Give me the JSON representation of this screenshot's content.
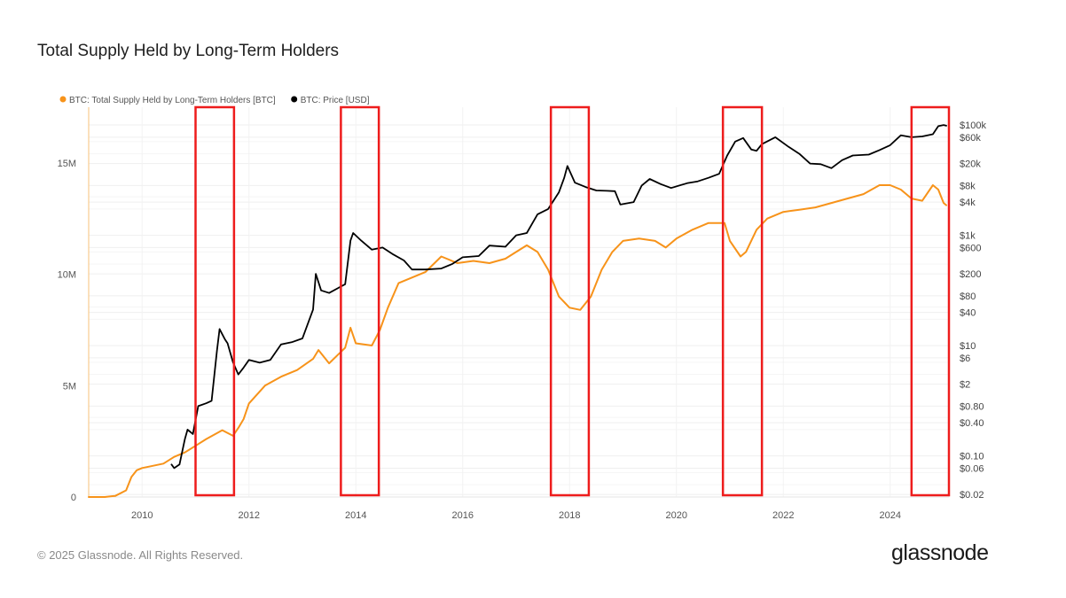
{
  "title": "Total Supply Held by Long-Term Holders",
  "footer": "© 2025 Glassnode. All Rights Reserved.",
  "brand": "glassnode",
  "chart_data": {
    "type": "line",
    "title": "Total Supply Held by Long-Term Holders",
    "legend_position": "top-left",
    "grid": true,
    "x_ticks": [
      "2010",
      "2012",
      "2014",
      "2016",
      "2018",
      "2020",
      "2022",
      "2024"
    ],
    "xlim": [
      2009.0,
      2025.1
    ],
    "y_left": {
      "ticks": [
        {
          "v": 0,
          "label": "0"
        },
        {
          "v": 5,
          "label": "5M"
        },
        {
          "v": 10,
          "label": "10M"
        },
        {
          "v": 15,
          "label": "15M"
        }
      ],
      "ylim": [
        0,
        17.5
      ],
      "unit": "M BTC"
    },
    "y_right": {
      "scale": "log",
      "ticks": [
        {
          "v": 100000,
          "label": "$100k"
        },
        {
          "v": 60000,
          "label": "$60k"
        },
        {
          "v": 20000,
          "label": "$20k"
        },
        {
          "v": 8000,
          "label": "$8k"
        },
        {
          "v": 4000,
          "label": "$4k"
        },
        {
          "v": 1000,
          "label": "$1k"
        },
        {
          "v": 600,
          "label": "$600"
        },
        {
          "v": 200,
          "label": "$200"
        },
        {
          "v": 80,
          "label": "$80"
        },
        {
          "v": 40,
          "label": "$40"
        },
        {
          "v": 10,
          "label": "$10"
        },
        {
          "v": 6,
          "label": "$6"
        },
        {
          "v": 2,
          "label": "$2"
        },
        {
          "v": 0.8,
          "label": "$0.80"
        },
        {
          "v": 0.4,
          "label": "$0.40"
        },
        {
          "v": 0.1,
          "label": "$0.10"
        },
        {
          "v": 0.06,
          "label": "$0.06"
        },
        {
          "v": 0.02,
          "label": "$0.02"
        }
      ],
      "ylim": [
        0.018,
        210000
      ]
    },
    "series": [
      {
        "name": "BTC: Total Supply Held by Long-Term Holders [BTC]",
        "color": "#f7931a",
        "axis": "left",
        "x": [
          2009.0,
          2009.3,
          2009.5,
          2009.7,
          2009.8,
          2009.9,
          2010.0,
          2010.2,
          2010.4,
          2010.6,
          2010.8,
          2011.0,
          2011.2,
          2011.5,
          2011.7,
          2011.8,
          2011.9,
          2012.0,
          2012.3,
          2012.6,
          2012.9,
          2013.2,
          2013.3,
          2013.5,
          2013.8,
          2013.9,
          2014.0,
          2014.3,
          2014.45,
          2014.6,
          2014.8,
          2015.0,
          2015.3,
          2015.6,
          2015.9,
          2016.2,
          2016.5,
          2016.8,
          2017.0,
          2017.2,
          2017.4,
          2017.6,
          2017.8,
          2018.0,
          2018.2,
          2018.4,
          2018.6,
          2018.8,
          2019.0,
          2019.3,
          2019.6,
          2019.8,
          2020.0,
          2020.3,
          2020.6,
          2020.9,
          2021.0,
          2021.2,
          2021.3,
          2021.5,
          2021.7,
          2022.0,
          2022.3,
          2022.6,
          2022.9,
          2023.2,
          2023.5,
          2023.8,
          2024.0,
          2024.2,
          2024.4,
          2024.6,
          2024.8,
          2024.9,
          2025.0,
          2025.05
        ],
        "values": [
          0,
          0,
          0.05,
          0.3,
          0.9,
          1.2,
          1.3,
          1.4,
          1.5,
          1.8,
          2.0,
          2.3,
          2.6,
          3.0,
          2.75,
          3.1,
          3.5,
          4.2,
          5.0,
          5.4,
          5.7,
          6.2,
          6.6,
          6.0,
          6.7,
          7.6,
          6.9,
          6.8,
          7.5,
          8.5,
          9.6,
          9.8,
          10.1,
          10.8,
          10.5,
          10.6,
          10.5,
          10.7,
          11.0,
          11.3,
          11.0,
          10.2,
          9.0,
          8.5,
          8.4,
          9.0,
          10.2,
          11.0,
          11.5,
          11.6,
          11.5,
          11.2,
          11.6,
          12.0,
          12.3,
          12.3,
          11.5,
          10.8,
          11.0,
          12.0,
          12.5,
          12.8,
          12.9,
          13.0,
          13.2,
          13.4,
          13.6,
          14.0,
          14.0,
          13.8,
          13.4,
          13.3,
          14.0,
          13.8,
          13.2,
          13.1
        ]
      },
      {
        "name": "BTC: Price [USD]",
        "color": "#000000",
        "axis": "right",
        "x": [
          2010.55,
          2010.6,
          2010.7,
          2010.8,
          2010.85,
          2010.95,
          2011.05,
          2011.2,
          2011.3,
          2011.4,
          2011.45,
          2011.55,
          2011.6,
          2011.7,
          2011.8,
          2011.9,
          2012.0,
          2012.2,
          2012.4,
          2012.6,
          2012.8,
          2013.0,
          2013.2,
          2013.25,
          2013.35,
          2013.5,
          2013.8,
          2013.9,
          2013.95,
          2014.1,
          2014.3,
          2014.5,
          2014.7,
          2014.9,
          2015.05,
          2015.3,
          2015.6,
          2015.8,
          2016.0,
          2016.3,
          2016.5,
          2016.8,
          2017.0,
          2017.2,
          2017.4,
          2017.6,
          2017.8,
          2017.9,
          2017.96,
          2018.1,
          2018.3,
          2018.5,
          2018.7,
          2018.85,
          2018.95,
          2019.2,
          2019.35,
          2019.5,
          2019.7,
          2019.9,
          2020.2,
          2020.4,
          2020.6,
          2020.8,
          2020.95,
          2021.1,
          2021.25,
          2021.4,
          2021.5,
          2021.6,
          2021.85,
          2022.1,
          2022.3,
          2022.5,
          2022.7,
          2022.9,
          2023.1,
          2023.3,
          2023.6,
          2023.8,
          2024.0,
          2024.2,
          2024.4,
          2024.6,
          2024.8,
          2024.9,
          2025.0,
          2025.05
        ],
        "values": [
          0.07,
          0.06,
          0.07,
          0.2,
          0.3,
          0.25,
          0.8,
          0.9,
          1.0,
          8.0,
          20.0,
          13.0,
          11.0,
          5.0,
          3.0,
          4.0,
          5.5,
          4.9,
          5.5,
          10.5,
          11.5,
          13.5,
          45.0,
          200.0,
          100.0,
          90.0,
          130.0,
          800.0,
          1100.0,
          800.0,
          550.0,
          600.0,
          450.0,
          350.0,
          240.0,
          240.0,
          250.0,
          300.0,
          400.0,
          420.0,
          650.0,
          620.0,
          1000.0,
          1100.0,
          2400.0,
          3000.0,
          6000.0,
          11000.0,
          18000.0,
          9000.0,
          7500.0,
          6500.0,
          6400.0,
          6300.0,
          3600.0,
          4000.0,
          8000.0,
          10500.0,
          8500.0,
          7200.0,
          8800.0,
          9500.0,
          11000.0,
          13000.0,
          28000.0,
          50000.0,
          58000.0,
          36000.0,
          34000.0,
          45000.0,
          60000.0,
          40000.0,
          30000.0,
          20000.0,
          19500.0,
          16500.0,
          23000.0,
          28000.0,
          29000.0,
          35000.0,
          43000.0,
          65000.0,
          60000.0,
          62000.0,
          68000.0,
          95000.0,
          100000.0,
          97000.0
        ]
      }
    ],
    "highlights": [
      {
        "x0": 2011.0,
        "x1": 2011.72
      },
      {
        "x0": 2013.72,
        "x1": 2014.43
      },
      {
        "x0": 2017.65,
        "x1": 2018.36
      },
      {
        "x0": 2020.87,
        "x1": 2021.6
      },
      {
        "x0": 2024.4,
        "x1": 2025.1
      }
    ],
    "highlight_color": "#ee1c1c"
  }
}
